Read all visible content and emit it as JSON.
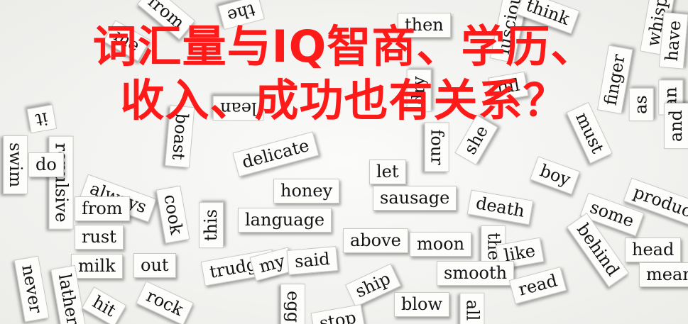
{
  "headline": {
    "line1": "词汇量与IQ智商、学历、",
    "line2": "收入、成功也有关系？",
    "color": "#ff1a1a"
  },
  "magnets": [
    "then",
    "luscious",
    "think",
    "whisper",
    "have",
    "from",
    "the",
    "me",
    "ful",
    "finger",
    "as",
    "an",
    "it",
    "dry",
    "lean",
    "she",
    "must",
    "and",
    "head",
    "boast",
    "delicate",
    "let",
    "four",
    "boy",
    "produce",
    "repulsive",
    "always",
    "cook",
    "honey",
    "sausage",
    "death",
    "some",
    "from",
    "this",
    "language",
    "rust",
    "above",
    "moon",
    "the",
    "like",
    "behind",
    "milk",
    "out",
    "trudge",
    "my",
    "said",
    "smooth",
    "mean",
    "never",
    "lather",
    "hit",
    "rock",
    "ship",
    "blow",
    "egg",
    "stop",
    "read",
    "all",
    "swim",
    "do"
  ]
}
